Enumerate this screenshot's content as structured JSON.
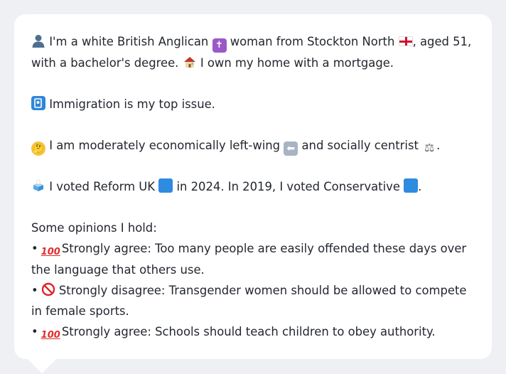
{
  "profile": {
    "line1_a": "I'm a white British Anglican",
    "line1_b": "woman from Stockton North",
    "line1_c": ", aged 51, with a bachelor's degree.",
    "line1_d": "I own my home with a mortgage.",
    "issue": "Immigration is my top issue.",
    "stance_a": "I am moderately economically left-wing",
    "stance_b": "and socially centrist",
    "stance_c": ".",
    "vote_a": "I voted Reform UK",
    "vote_b": "in 2024. In 2019, I voted Conservative",
    "vote_c": ".",
    "opinions_heading": "Some opinions I hold:",
    "opinions": [
      {
        "icon": "hundred-icon",
        "text": "Strongly agree: Too many people are easily offended these days over the language that others use."
      },
      {
        "icon": "prohibited-icon",
        "text": "Strongly disagree: Transgender women should be allowed to compete in female sports."
      },
      {
        "icon": "hundred-icon",
        "text": "Strongly agree: Schools should teach children to obey authority."
      }
    ],
    "bullet": "•",
    "hundred_glyph": "100"
  },
  "colors": {
    "background": "#eef0f3",
    "bubble": "#ffffff",
    "text": "#23272e",
    "reform_blue": "#2d8be0",
    "conservative_blue": "#2d8be0"
  }
}
